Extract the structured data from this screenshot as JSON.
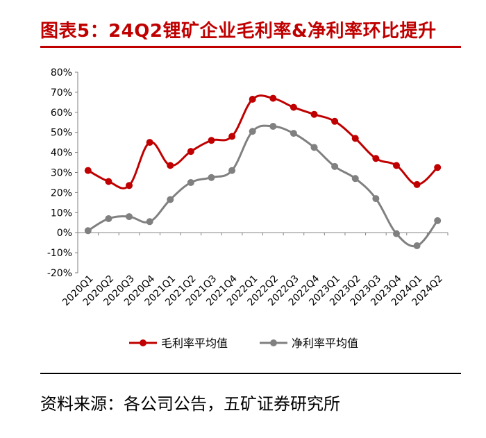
{
  "header": {
    "title": "图表5：24Q2锂矿企业毛利率&净利率环比提升"
  },
  "footer": {
    "source": "资料来源：各公司公告，五矿证券研究所"
  },
  "chart_data": {
    "type": "line",
    "title": "图表5：24Q2锂矿企业毛利率&净利率环比提升",
    "categories": [
      "2020Q1",
      "2020Q2",
      "2020Q3",
      "2020Q4",
      "2021Q1",
      "2021Q2",
      "2021Q3",
      "2021Q4",
      "2022Q1",
      "2022Q2",
      "2022Q3",
      "2022Q4",
      "2023Q1",
      "2023Q2",
      "2023Q3",
      "2023Q4",
      "2024Q1",
      "2024Q2"
    ],
    "yticks": [
      "80%",
      "70%",
      "60%",
      "50%",
      "40%",
      "30%",
      "20%",
      "10%",
      "0%",
      "-10%",
      "-20%"
    ],
    "ylim": [
      -20,
      80
    ],
    "xlabel": "",
    "ylabel": "",
    "legend_position": "bottom",
    "series": [
      {
        "name": "毛利率平均值",
        "color": "#c00000",
        "values": [
          31,
          25.5,
          23.5,
          45,
          33.5,
          40.5,
          46,
          48,
          66.5,
          67,
          62.5,
          59,
          55.5,
          47,
          37,
          33.5,
          24,
          32.5
        ]
      },
      {
        "name": "净利率平均值",
        "color": "#808080",
        "values": [
          1,
          7,
          8,
          5.5,
          16.5,
          25,
          27.5,
          31,
          50.5,
          53,
          49.5,
          42.5,
          33,
          27,
          17,
          -0.5,
          -6.5,
          6
        ]
      }
    ]
  }
}
